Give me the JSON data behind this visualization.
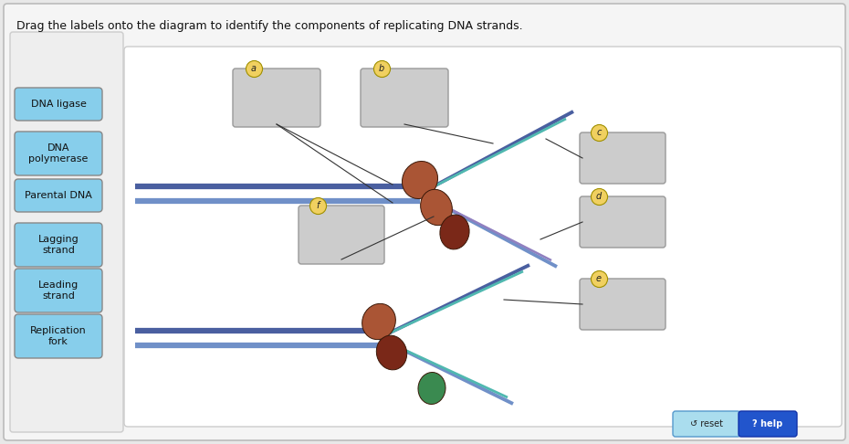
{
  "title": "Drag the labels onto the diagram to identify the components of replicating DNA strands.",
  "bg_outer": "#e8e8e8",
  "bg_panel": "#f2f2f2",
  "bg_diagram": "#ffffff",
  "button_color": "#87CEEB",
  "button_edge": "#888888",
  "box_color": "#cccccc",
  "box_edge": "#999999",
  "buttons": [
    {
      "text": "DNA ligase",
      "lines": 1
    },
    {
      "text": "DNA\npolymerase",
      "lines": 2
    },
    {
      "text": "Parental DNA",
      "lines": 1
    },
    {
      "text": "Lagging\nstrand",
      "lines": 2
    },
    {
      "text": "Leading\nstrand",
      "lines": 2
    },
    {
      "text": "Replication\nfork",
      "lines": 2
    }
  ],
  "c_dark_blue": "#4a5fa0",
  "c_mid_blue": "#7090c8",
  "c_teal": "#50b8b0",
  "c_purple": "#9080c0",
  "c_green": "#3a8a50",
  "blob_brown": "#aa5535",
  "blob_dark": "#7a2818"
}
